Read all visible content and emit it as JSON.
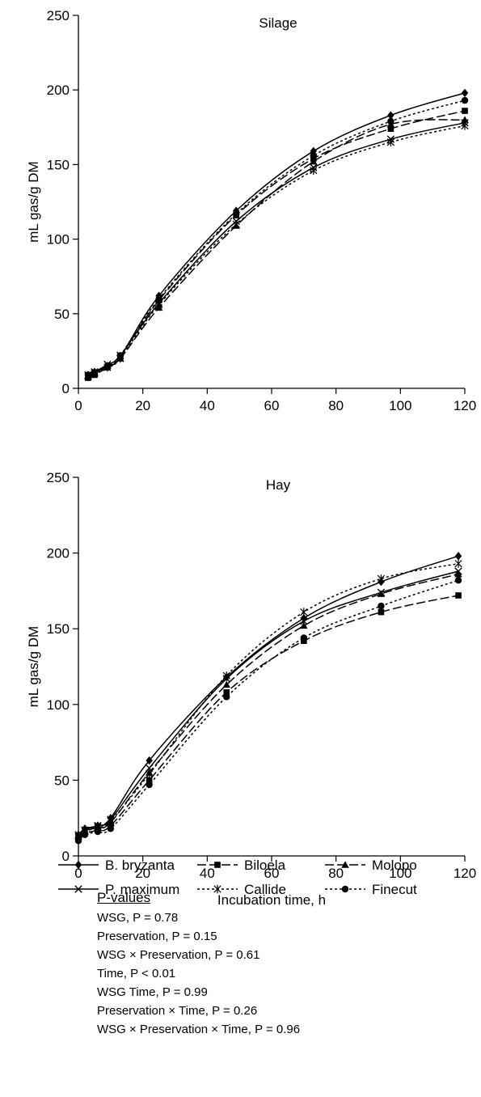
{
  "chart_data": [
    {
      "type": "line",
      "title": "Silage",
      "ylabel": "mL gas/g DM",
      "xlabel": "",
      "xlim": [
        0,
        120
      ],
      "ylim": [
        0,
        250
      ],
      "xticks": [
        0,
        20,
        40,
        60,
        80,
        100,
        120
      ],
      "yticks": [
        0,
        50,
        100,
        150,
        200,
        250
      ],
      "x": [
        3,
        5,
        9,
        13,
        25,
        49,
        73,
        97,
        120
      ],
      "series": [
        {
          "name": "B. bryzanta",
          "marker": "diamond",
          "dash": "solid",
          "values": [
            9,
            11,
            15,
            21,
            62,
            119,
            159,
            183,
            198
          ]
        },
        {
          "name": "Biloela",
          "marker": "square",
          "dash": "longdash",
          "values": [
            7,
            9,
            14,
            21,
            59,
            116,
            154,
            174,
            186
          ]
        },
        {
          "name": "Molopo",
          "marker": "triangle",
          "dash": "longdash",
          "values": [
            8,
            10,
            15,
            20,
            54,
            109,
            152,
            177,
            180
          ]
        },
        {
          "name": "P. maximum",
          "marker": "x",
          "dash": "solid",
          "values": [
            9,
            11,
            16,
            22,
            57,
            112,
            148,
            167,
            178
          ]
        },
        {
          "name": "Callide",
          "marker": "star",
          "dash": "dotted",
          "values": [
            8,
            10,
            14,
            20,
            56,
            110,
            146,
            165,
            176
          ]
        },
        {
          "name": "Finecut",
          "marker": "circle",
          "dash": "dotted",
          "values": [
            9,
            10,
            15,
            22,
            60,
            117,
            156,
            179,
            193
          ]
        }
      ]
    },
    {
      "type": "line",
      "title": "Hay",
      "ylabel": "mL gas/g DM",
      "xlabel": "Incubation time, h",
      "xlim": [
        0,
        120
      ],
      "ylim": [
        0,
        250
      ],
      "xticks": [
        0,
        20,
        40,
        60,
        80,
        100,
        120
      ],
      "yticks": [
        0,
        50,
        100,
        150,
        200,
        250
      ],
      "x": [
        0,
        2,
        6,
        10,
        22,
        46,
        70,
        94,
        118
      ],
      "series": [
        {
          "name": "B. bryzanta",
          "marker": "diamond",
          "dash": "solid",
          "values": [
            14,
            18,
            20,
            25,
            63,
            118,
            157,
            181,
            198
          ]
        },
        {
          "name": "Biloela",
          "marker": "square",
          "dash": "longdash",
          "values": [
            12,
            15,
            17,
            20,
            50,
            108,
            142,
            161,
            172
          ]
        },
        {
          "name": "Molopo",
          "marker": "triangle",
          "dash": "longdash",
          "values": [
            13,
            16,
            19,
            22,
            55,
            113,
            152,
            173,
            186
          ]
        },
        {
          "name": "P. maximum",
          "marker": "x",
          "dash": "solid",
          "values": [
            13,
            17,
            20,
            24,
            58,
            117,
            155,
            174,
            188
          ]
        },
        {
          "name": "Callide",
          "marker": "star",
          "dash": "dotted",
          "values": [
            14,
            17,
            19,
            23,
            54,
            119,
            161,
            183,
            193
          ]
        },
        {
          "name": "Finecut",
          "marker": "circle",
          "dash": "dotted",
          "values": [
            10,
            14,
            16,
            18,
            47,
            105,
            144,
            165,
            182
          ]
        }
      ]
    }
  ],
  "legend": {
    "items": [
      "B. bryzanta",
      "Biloela",
      "Molopo",
      "P. maximum",
      "Callide",
      "Finecut"
    ]
  },
  "pvalues": {
    "title": "P-values",
    "lines": [
      "WSG, P = 0.78",
      "Preservation, P = 0.15",
      "WSG × Preservation, P = 0.61",
      "Time, P < 0.01",
      "WSG Time, P = 0.99",
      "Preservation × Time, P = 0.26",
      "WSG × Preservation × Time, P = 0.96"
    ]
  },
  "colors": {
    "ink": "#000000",
    "background": "#ffffff"
  }
}
